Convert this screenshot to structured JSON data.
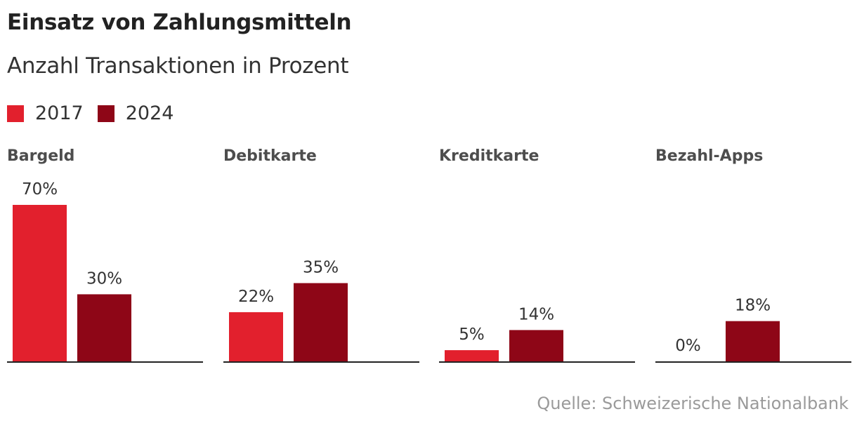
{
  "title": "Einsatz von Zahlungsmitteln",
  "subtitle": "Anzahl Transaktionen in Prozent",
  "source": "Quelle: Schweizerische Nationalbank",
  "colors": {
    "series_2017": "#e2202d",
    "series_2024": "#8e0617",
    "panel_title": "#4d4d4d",
    "value_label": "#333333",
    "baseline": "#222222"
  },
  "chart_data": {
    "type": "bar",
    "categories": [
      "Bargeld",
      "Debitkarte",
      "Kreditkarte",
      "Bezahl-Apps"
    ],
    "series": [
      {
        "name": "2017",
        "values": [
          70,
          22,
          5,
          0
        ],
        "labels": [
          "70%",
          "22%",
          "5%",
          "0%"
        ]
      },
      {
        "name": "2024",
        "values": [
          30,
          35,
          14,
          18
        ],
        "labels": [
          "30%",
          "35%",
          "14%",
          "18%"
        ]
      }
    ],
    "ylim": [
      0,
      70
    ],
    "unit": "%",
    "legend_position": "top-left",
    "grid": false,
    "layout": "small-multiples"
  }
}
